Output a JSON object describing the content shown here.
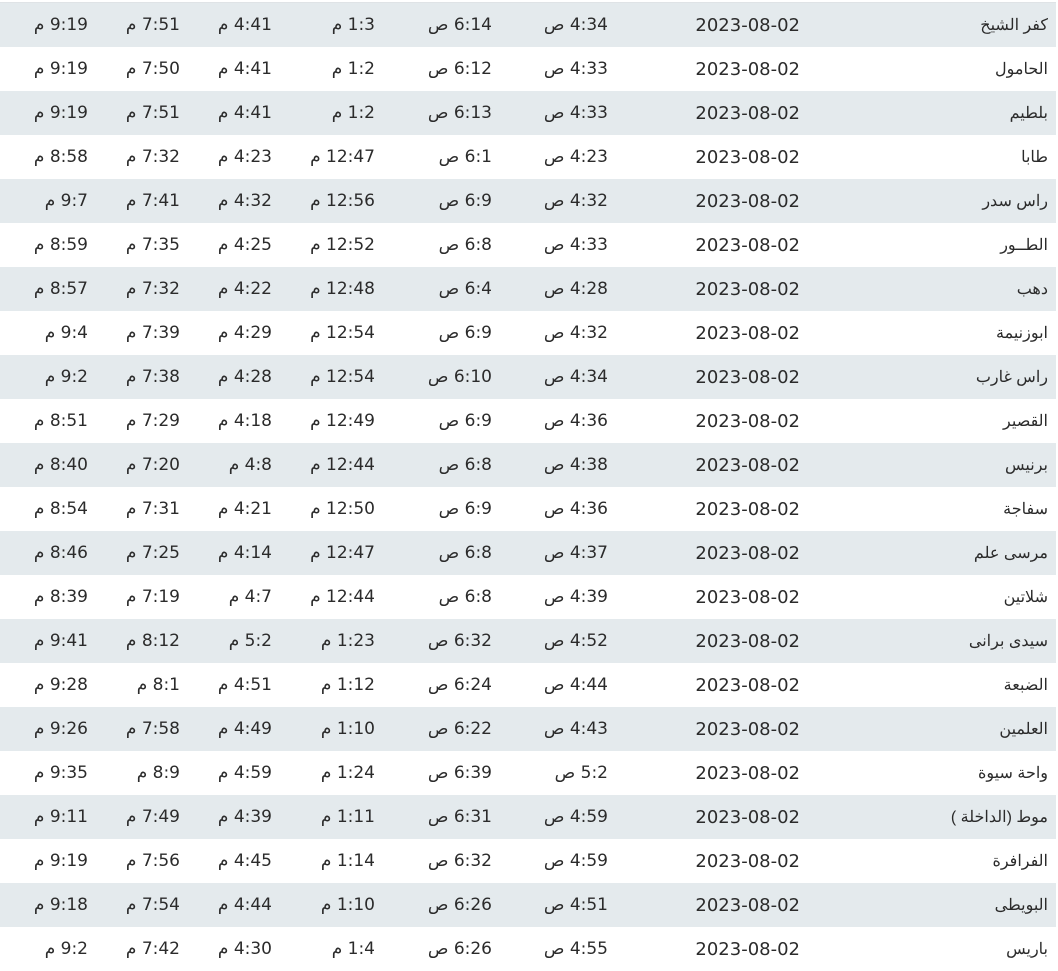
{
  "rows": [
    {
      "city": "كفر الشيخ",
      "date": "2023-08-02",
      "fajr": "4:34 ص",
      "sunrise": "6:14 ص",
      "dhuhr": "1:3 م",
      "asr": "4:41 م",
      "maghrib": "7:51 م",
      "isha": "9:19 م"
    },
    {
      "city": "الحامول",
      "date": "2023-08-02",
      "fajr": "4:33 ص",
      "sunrise": "6:12 ص",
      "dhuhr": "1:2 م",
      "asr": "4:41 م",
      "maghrib": "7:50 م",
      "isha": "9:19 م"
    },
    {
      "city": "بلطيم",
      "date": "2023-08-02",
      "fajr": "4:33 ص",
      "sunrise": "6:13 ص",
      "dhuhr": "1:2 م",
      "asr": "4:41 م",
      "maghrib": "7:51 م",
      "isha": "9:19 م"
    },
    {
      "city": "طابا",
      "date": "2023-08-02",
      "fajr": "4:23 ص",
      "sunrise": "6:1 ص",
      "dhuhr": "12:47 م",
      "asr": "4:23 م",
      "maghrib": "7:32 م",
      "isha": "8:58 م"
    },
    {
      "city": "راس سدر",
      "date": "2023-08-02",
      "fajr": "4:32 ص",
      "sunrise": "6:9 ص",
      "dhuhr": "12:56 م",
      "asr": "4:32 م",
      "maghrib": "7:41 م",
      "isha": "9:7 م"
    },
    {
      "city": "الطــور",
      "date": "2023-08-02",
      "fajr": "4:33 ص",
      "sunrise": "6:8 ص",
      "dhuhr": "12:52 م",
      "asr": "4:25 م",
      "maghrib": "7:35 م",
      "isha": "8:59 م"
    },
    {
      "city": "دهب",
      "date": "2023-08-02",
      "fajr": "4:28 ص",
      "sunrise": "6:4 ص",
      "dhuhr": "12:48 م",
      "asr": "4:22 م",
      "maghrib": "7:32 م",
      "isha": "8:57 م"
    },
    {
      "city": "ابوزنيمة",
      "date": "2023-08-02",
      "fajr": "4:32 ص",
      "sunrise": "6:9 ص",
      "dhuhr": "12:54 م",
      "asr": "4:29 م",
      "maghrib": "7:39 م",
      "isha": "9:4 م"
    },
    {
      "city": "راس غارب",
      "date": "2023-08-02",
      "fajr": "4:34 ص",
      "sunrise": "6:10 ص",
      "dhuhr": "12:54 م",
      "asr": "4:28 م",
      "maghrib": "7:38 م",
      "isha": "9:2 م"
    },
    {
      "city": "القصير",
      "date": "2023-08-02",
      "fajr": "4:36 ص",
      "sunrise": "6:9 ص",
      "dhuhr": "12:49 م",
      "asr": "4:18 م",
      "maghrib": "7:29 م",
      "isha": "8:51 م"
    },
    {
      "city": "برنيس",
      "date": "2023-08-02",
      "fajr": "4:38 ص",
      "sunrise": "6:8 ص",
      "dhuhr": "12:44 م",
      "asr": "4:8 م",
      "maghrib": "7:20 م",
      "isha": "8:40 م"
    },
    {
      "city": "سفاجة",
      "date": "2023-08-02",
      "fajr": "4:36 ص",
      "sunrise": "6:9 ص",
      "dhuhr": "12:50 م",
      "asr": "4:21 م",
      "maghrib": "7:31 م",
      "isha": "8:54 م"
    },
    {
      "city": "مرسى علم",
      "date": "2023-08-02",
      "fajr": "4:37 ص",
      "sunrise": "6:8 ص",
      "dhuhr": "12:47 م",
      "asr": "4:14 م",
      "maghrib": "7:25 م",
      "isha": "8:46 م"
    },
    {
      "city": "شلاتين",
      "date": "2023-08-02",
      "fajr": "4:39 ص",
      "sunrise": "6:8 ص",
      "dhuhr": "12:44 م",
      "asr": "4:7 م",
      "maghrib": "7:19 م",
      "isha": "8:39 م"
    },
    {
      "city": "سيدى برانى",
      "date": "2023-08-02",
      "fajr": "4:52 ص",
      "sunrise": "6:32 ص",
      "dhuhr": "1:23 م",
      "asr": "5:2 م",
      "maghrib": "8:12 م",
      "isha": "9:41 م"
    },
    {
      "city": "الضبعة",
      "date": "2023-08-02",
      "fajr": "4:44 ص",
      "sunrise": "6:24 ص",
      "dhuhr": "1:12 م",
      "asr": "4:51 م",
      "maghrib": "8:1 م",
      "isha": "9:28 م"
    },
    {
      "city": "العلمين",
      "date": "2023-08-02",
      "fajr": "4:43 ص",
      "sunrise": "6:22 ص",
      "dhuhr": "1:10 م",
      "asr": "4:49 م",
      "maghrib": "7:58 م",
      "isha": "9:26 م"
    },
    {
      "city": "واحة سيوة",
      "date": "2023-08-02",
      "fajr": "5:2 ص",
      "sunrise": "6:39 ص",
      "dhuhr": "1:24 م",
      "asr": "4:59 م",
      "maghrib": "8:9 م",
      "isha": "9:35 م"
    },
    {
      "city": "موط (الداخلة )",
      "date": "2023-08-02",
      "fajr": "4:59 ص",
      "sunrise": "6:31 ص",
      "dhuhr": "1:11 م",
      "asr": "4:39 م",
      "maghrib": "7:49 م",
      "isha": "9:11 م"
    },
    {
      "city": "الفرافرة",
      "date": "2023-08-02",
      "fajr": "4:59 ص",
      "sunrise": "6:32 ص",
      "dhuhr": "1:14 م",
      "asr": "4:45 م",
      "maghrib": "7:56 م",
      "isha": "9:19 م"
    },
    {
      "city": "البويطى",
      "date": "2023-08-02",
      "fajr": "4:51 ص",
      "sunrise": "6:26 ص",
      "dhuhr": "1:10 م",
      "asr": "4:44 م",
      "maghrib": "7:54 م",
      "isha": "9:18 م"
    },
    {
      "city": "باريس",
      "date": "2023-08-02",
      "fajr": "4:55 ص",
      "sunrise": "6:26 ص",
      "dhuhr": "1:4 م",
      "asr": "4:30 م",
      "maghrib": "7:42 م",
      "isha": "9:2 م"
    }
  ]
}
